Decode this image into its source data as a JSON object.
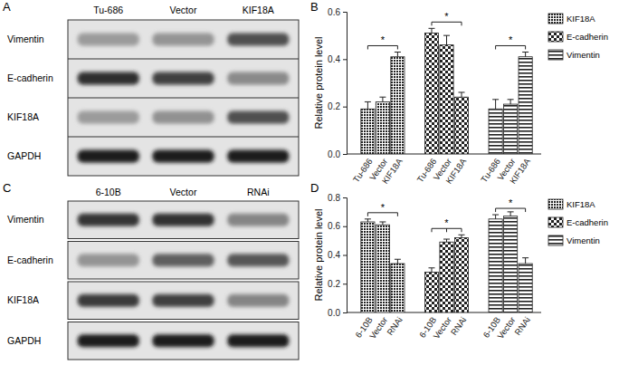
{
  "chart_data": [
    {
      "type": "bar",
      "title": "B",
      "categories": [
        "Tu-686",
        "Vector",
        "KIF18A"
      ],
      "series": [
        {
          "name": "KIF18A",
          "color": "#222222",
          "values": [
            0.19,
            0.22,
            0.41
          ],
          "errors": [
            0.03,
            0.02,
            0.02
          ]
        },
        {
          "name": "E-cadherin",
          "color": "#222222",
          "values": [
            0.51,
            0.46,
            0.24
          ],
          "errors": [
            0.02,
            0.04,
            0.02
          ]
        },
        {
          "name": "Vimentin",
          "color": "#222222",
          "values": [
            0.19,
            0.21,
            0.41
          ],
          "errors": [
            0.04,
            0.02,
            0.02
          ]
        }
      ],
      "ylim": [
        0,
        0.6
      ],
      "yticks": [
        {
          "value": 0,
          "label": "0.0"
        },
        0.2,
        0.4,
        0.6
      ],
      "y_label": "Relative protein level",
      "legend": "right",
      "annotations": [
        {
          "text": "*",
          "series": 0,
          "between": [
            0,
            2
          ]
        },
        {
          "text": "*",
          "series": 1,
          "between": [
            0,
            2
          ]
        },
        {
          "text": "*",
          "series": 2,
          "between": [
            0,
            2
          ]
        }
      ]
    },
    {
      "type": "bar",
      "title": "D",
      "categories": [
        "6-10B",
        "Vector",
        "RNAi"
      ],
      "series": [
        {
          "name": "KIF18A",
          "color": "#222222",
          "values": [
            0.63,
            0.61,
            0.34
          ],
          "errors": [
            0.02,
            0.02,
            0.03
          ]
        },
        {
          "name": "E-cadherin",
          "color": "#222222",
          "values": [
            0.28,
            0.49,
            0.52
          ],
          "errors": [
            0.03,
            0.02,
            0.02
          ]
        },
        {
          "name": "Vimentin",
          "color": "#222222",
          "values": [
            0.65,
            0.67,
            0.34
          ],
          "errors": [
            0.03,
            0.03,
            0.04
          ]
        }
      ],
      "ylim": [
        0,
        0.8
      ],
      "yticks": [
        {
          "value": 0,
          "label": "0.0"
        },
        0.2,
        0.4,
        0.6,
        0.8
      ],
      "y_label": "Relative protein level",
      "legend": "right",
      "annotations": [
        {
          "text": "*",
          "series": 0,
          "between": [
            0,
            2
          ]
        },
        {
          "text": "*",
          "series": 1,
          "between": [
            0,
            1,
            2
          ]
        },
        {
          "text": "*",
          "series": 2,
          "between": [
            0,
            2
          ]
        }
      ]
    }
  ],
  "blots": [
    {
      "title": "A",
      "lanes": [
        "Tu-686",
        "Vector",
        "KIF18A"
      ],
      "rows": [
        "Vimentin",
        "E-cadherin",
        "KIF18A",
        "GAPDH"
      ]
    },
    {
      "title": "C",
      "lanes": [
        "6-10B",
        "Vector",
        "RNAi"
      ],
      "rows": [
        "Vimentin",
        "E-cadherin",
        "KIF18A",
        "GAPDH"
      ]
    }
  ]
}
